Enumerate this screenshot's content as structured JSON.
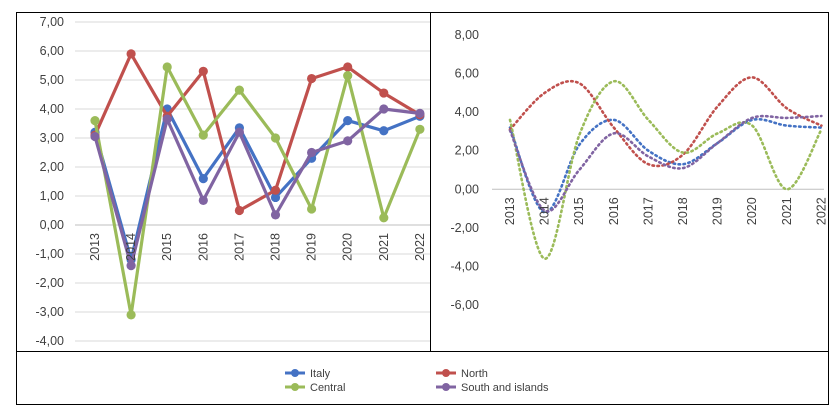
{
  "chart_data": [
    {
      "type": "line",
      "style": "solid-with-markers",
      "categories": [
        "2013",
        "2014",
        "2015",
        "2016",
        "2017",
        "2018",
        "2019",
        "2020",
        "2021",
        "2022"
      ],
      "ylim": [
        -4,
        7
      ],
      "yticks": [
        "7,00",
        "6,00",
        "5,00",
        "4,00",
        "3,00",
        "2,00",
        "1,00",
        "0,00",
        "-1,00",
        "-2,00",
        "-3,00",
        "-4,00"
      ],
      "grid": true,
      "series": [
        {
          "name": "Italy",
          "color": "#4472C4",
          "values": [
            3.2,
            -1.2,
            4.0,
            1.6,
            3.35,
            0.95,
            2.3,
            3.6,
            3.25,
            3.75
          ]
        },
        {
          "name": "North",
          "color": "#C0504D",
          "values": [
            3.1,
            5.9,
            3.75,
            5.3,
            0.5,
            1.2,
            5.05,
            5.45,
            4.55,
            3.8
          ]
        },
        {
          "name": "Central",
          "color": "#9BBB59",
          "values": [
            3.6,
            -3.1,
            5.45,
            3.1,
            4.65,
            3.0,
            0.55,
            5.15,
            0.25,
            3.3
          ]
        },
        {
          "name": "South and islands",
          "color": "#8064A2",
          "values": [
            3.05,
            -1.4,
            3.65,
            0.85,
            3.2,
            0.35,
            2.5,
            2.9,
            4.0,
            3.85
          ]
        }
      ]
    },
    {
      "type": "line",
      "style": "dotted-smoothed",
      "categories": [
        "2013",
        "2014",
        "2015",
        "2016",
        "2017",
        "2018",
        "2019",
        "2020",
        "2021",
        "2022"
      ],
      "ylim": [
        -6,
        8
      ],
      "yticks": [
        "8,00",
        "6,00",
        "4,00",
        "2,00",
        "0,00",
        "-2,00",
        "-4,00",
        "-6,00"
      ],
      "grid": false,
      "series": [
        {
          "name": "Italy",
          "color": "#4472C4",
          "values": [
            3.2,
            -1.2,
            2.3,
            3.6,
            2.0,
            1.3,
            2.4,
            3.6,
            3.3,
            3.2
          ]
        },
        {
          "name": "North",
          "color": "#C0504D",
          "values": [
            3.1,
            5.0,
            5.5,
            3.2,
            1.3,
            1.8,
            4.3,
            5.8,
            4.2,
            3.3
          ]
        },
        {
          "name": "Central",
          "color": "#9BBB59",
          "values": [
            3.6,
            -3.6,
            2.8,
            5.6,
            3.6,
            1.9,
            2.9,
            3.3,
            0.0,
            3.1
          ]
        },
        {
          "name": "South and islands",
          "color": "#8064A2",
          "values": [
            3.05,
            -1.1,
            1.0,
            2.9,
            1.7,
            1.1,
            2.4,
            3.7,
            3.7,
            3.8
          ]
        }
      ]
    }
  ],
  "legend": [
    {
      "label": "Italy",
      "color": "#4472C4"
    },
    {
      "label": "North",
      "color": "#C0504D"
    },
    {
      "label": "Central",
      "color": "#9BBB59"
    },
    {
      "label": "South and islands",
      "color": "#8064A2"
    }
  ]
}
